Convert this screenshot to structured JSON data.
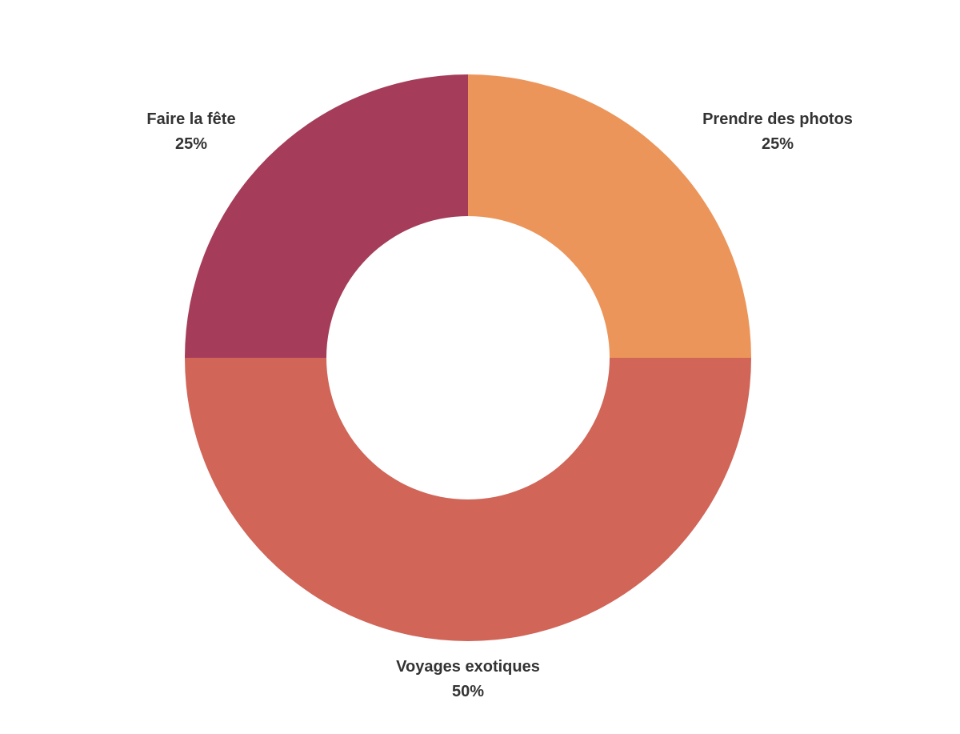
{
  "chart_data": {
    "type": "pie",
    "donut": true,
    "title": "",
    "slices": [
      {
        "label": "Prendre des photos",
        "value": 25,
        "pct_label": "25%",
        "color": "#EC955A"
      },
      {
        "label": "Voyages exotiques",
        "value": 50,
        "pct_label": "50%",
        "color": "#D06558"
      },
      {
        "label": "Faire la fête",
        "value": 25,
        "pct_label": "25%",
        "color": "#A53C5A"
      }
    ]
  }
}
